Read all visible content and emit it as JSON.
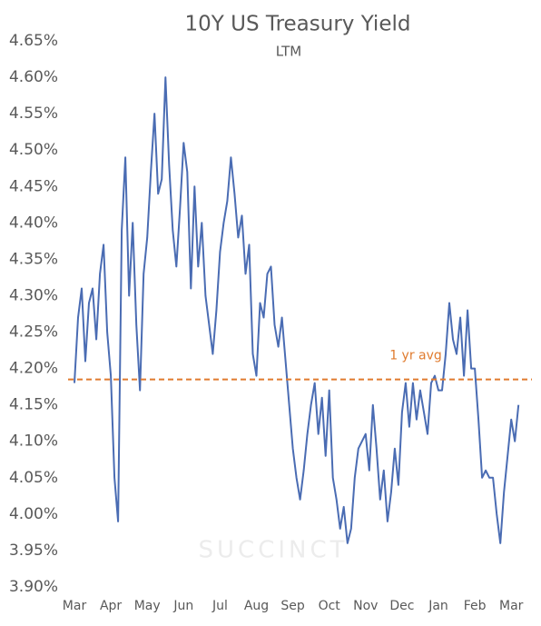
{
  "chart_data": {
    "type": "line",
    "title": "10Y US Treasury Yield",
    "subtitle": "LTM",
    "categories": [
      "Mar",
      null,
      null,
      null,
      null,
      null,
      null,
      null,
      null,
      null,
      "Apr",
      null,
      null,
      null,
      null,
      null,
      null,
      null,
      null,
      null,
      "May",
      null,
      null,
      null,
      null,
      null,
      null,
      null,
      null,
      null,
      "Jun",
      null,
      null,
      null,
      null,
      null,
      null,
      null,
      null,
      null,
      "Jul",
      null,
      null,
      null,
      null,
      null,
      null,
      null,
      null,
      null,
      "Aug",
      null,
      null,
      null,
      null,
      null,
      null,
      null,
      null,
      null,
      "Sep",
      null,
      null,
      null,
      null,
      null,
      null,
      null,
      null,
      null,
      "Oct",
      null,
      null,
      null,
      null,
      null,
      null,
      null,
      null,
      null,
      "Nov",
      null,
      null,
      null,
      null,
      null,
      null,
      null,
      null,
      null,
      "Dec",
      null,
      null,
      null,
      null,
      null,
      null,
      null,
      null,
      null,
      "Jan",
      null,
      null,
      null,
      null,
      null,
      null,
      null,
      null,
      null,
      "Feb",
      null,
      null,
      null,
      null,
      null,
      null,
      null,
      null,
      null,
      "Mar",
      null,
      null
    ],
    "series": [
      {
        "name": "10Y US Treasury Yield",
        "color": "#4a6cb3",
        "values": [
          4.18,
          4.27,
          4.31,
          4.21,
          4.29,
          4.31,
          4.24,
          4.33,
          4.37,
          4.25,
          4.19,
          4.05,
          3.99,
          4.39,
          4.49,
          4.3,
          4.4,
          4.26,
          4.17,
          4.33,
          4.38,
          4.47,
          4.55,
          4.44,
          4.46,
          4.6,
          4.48,
          4.39,
          4.34,
          4.42,
          4.51,
          4.47,
          4.31,
          4.45,
          4.34,
          4.4,
          4.3,
          4.26,
          4.22,
          4.28,
          4.36,
          4.4,
          4.43,
          4.49,
          4.44,
          4.38,
          4.41,
          4.33,
          4.37,
          4.22,
          4.19,
          4.29,
          4.27,
          4.33,
          4.34,
          4.26,
          4.23,
          4.27,
          4.21,
          4.15,
          4.09,
          4.05,
          4.02,
          4.06,
          4.11,
          4.15,
          4.18,
          4.11,
          4.16,
          4.08,
          4.17,
          4.05,
          4.02,
          3.98,
          4.01,
          3.96,
          3.98,
          4.05,
          4.09,
          4.1,
          4.11,
          4.06,
          4.15,
          4.09,
          4.02,
          4.06,
          3.99,
          4.03,
          4.09,
          4.04,
          4.14,
          4.18,
          4.12,
          4.18,
          4.13,
          4.17,
          4.14,
          4.11,
          4.18,
          4.19,
          4.17,
          4.17,
          4.22,
          4.29,
          4.24,
          4.22,
          4.27,
          4.19,
          4.28,
          4.2,
          4.2,
          4.13,
          4.05,
          4.06,
          4.05,
          4.05,
          4.0,
          3.96,
          4.03,
          4.08,
          4.13,
          4.1,
          4.15
        ]
      }
    ],
    "ylim": [
      3.9,
      4.65
    ],
    "yticks": [
      {
        "value": 4.65,
        "label": "4.65%"
      },
      {
        "value": 4.6,
        "label": "4.60%"
      },
      {
        "value": 4.55,
        "label": "4.55%"
      },
      {
        "value": 4.5,
        "label": "4.50%"
      },
      {
        "value": 4.45,
        "label": "4.45%"
      },
      {
        "value": 4.4,
        "label": "4.40%"
      },
      {
        "value": 4.35,
        "label": "4.35%"
      },
      {
        "value": 4.3,
        "label": "4.30%"
      },
      {
        "value": 4.25,
        "label": "4.25%"
      },
      {
        "value": 4.2,
        "label": "4.20%"
      },
      {
        "value": 4.15,
        "label": "4.15%"
      },
      {
        "value": 4.1,
        "label": "4.10%"
      },
      {
        "value": 4.05,
        "label": "4.05%"
      },
      {
        "value": 4.0,
        "label": "4.00%"
      },
      {
        "value": 3.95,
        "label": "3.95%"
      },
      {
        "value": 3.9,
        "label": "3.90%"
      }
    ],
    "reference_line": {
      "value": 4.185,
      "label": "1 yr avg",
      "color": "#e07b2e"
    },
    "watermark": "SUCCINCT",
    "grid": false
  }
}
